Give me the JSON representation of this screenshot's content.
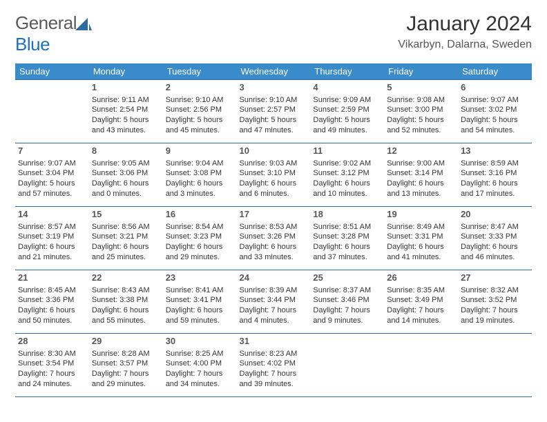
{
  "logo": {
    "general": "General",
    "blue": "Blue",
    "sail_color": "#2d6ca2"
  },
  "header": {
    "month_title": "January 2024",
    "location": "Vikarbyn, Dalarna, Sweden"
  },
  "colors": {
    "header_bg": "#3a8bca",
    "header_text": "#ffffff",
    "cell_border": "#2d6ca2",
    "body_text": "#333333",
    "daynum_text": "#555555",
    "logo_gray": "#5a5a5a",
    "logo_blue": "#2170b8",
    "page_bg": "#ffffff"
  },
  "calendar": {
    "weekdays": [
      "Sunday",
      "Monday",
      "Tuesday",
      "Wednesday",
      "Thursday",
      "Friday",
      "Saturday"
    ],
    "weeks": [
      [
        null,
        {
          "n": "1",
          "sr": "Sunrise: 9:11 AM",
          "ss": "Sunset: 2:54 PM",
          "dl": "Daylight: 5 hours and 43 minutes."
        },
        {
          "n": "2",
          "sr": "Sunrise: 9:10 AM",
          "ss": "Sunset: 2:56 PM",
          "dl": "Daylight: 5 hours and 45 minutes."
        },
        {
          "n": "3",
          "sr": "Sunrise: 9:10 AM",
          "ss": "Sunset: 2:57 PM",
          "dl": "Daylight: 5 hours and 47 minutes."
        },
        {
          "n": "4",
          "sr": "Sunrise: 9:09 AM",
          "ss": "Sunset: 2:59 PM",
          "dl": "Daylight: 5 hours and 49 minutes."
        },
        {
          "n": "5",
          "sr": "Sunrise: 9:08 AM",
          "ss": "Sunset: 3:00 PM",
          "dl": "Daylight: 5 hours and 52 minutes."
        },
        {
          "n": "6",
          "sr": "Sunrise: 9:07 AM",
          "ss": "Sunset: 3:02 PM",
          "dl": "Daylight: 5 hours and 54 minutes."
        }
      ],
      [
        {
          "n": "7",
          "sr": "Sunrise: 9:07 AM",
          "ss": "Sunset: 3:04 PM",
          "dl": "Daylight: 5 hours and 57 minutes."
        },
        {
          "n": "8",
          "sr": "Sunrise: 9:05 AM",
          "ss": "Sunset: 3:06 PM",
          "dl": "Daylight: 6 hours and 0 minutes."
        },
        {
          "n": "9",
          "sr": "Sunrise: 9:04 AM",
          "ss": "Sunset: 3:08 PM",
          "dl": "Daylight: 6 hours and 3 minutes."
        },
        {
          "n": "10",
          "sr": "Sunrise: 9:03 AM",
          "ss": "Sunset: 3:10 PM",
          "dl": "Daylight: 6 hours and 6 minutes."
        },
        {
          "n": "11",
          "sr": "Sunrise: 9:02 AM",
          "ss": "Sunset: 3:12 PM",
          "dl": "Daylight: 6 hours and 10 minutes."
        },
        {
          "n": "12",
          "sr": "Sunrise: 9:00 AM",
          "ss": "Sunset: 3:14 PM",
          "dl": "Daylight: 6 hours and 13 minutes."
        },
        {
          "n": "13",
          "sr": "Sunrise: 8:59 AM",
          "ss": "Sunset: 3:16 PM",
          "dl": "Daylight: 6 hours and 17 minutes."
        }
      ],
      [
        {
          "n": "14",
          "sr": "Sunrise: 8:57 AM",
          "ss": "Sunset: 3:19 PM",
          "dl": "Daylight: 6 hours and 21 minutes."
        },
        {
          "n": "15",
          "sr": "Sunrise: 8:56 AM",
          "ss": "Sunset: 3:21 PM",
          "dl": "Daylight: 6 hours and 25 minutes."
        },
        {
          "n": "16",
          "sr": "Sunrise: 8:54 AM",
          "ss": "Sunset: 3:23 PM",
          "dl": "Daylight: 6 hours and 29 minutes."
        },
        {
          "n": "17",
          "sr": "Sunrise: 8:53 AM",
          "ss": "Sunset: 3:26 PM",
          "dl": "Daylight: 6 hours and 33 minutes."
        },
        {
          "n": "18",
          "sr": "Sunrise: 8:51 AM",
          "ss": "Sunset: 3:28 PM",
          "dl": "Daylight: 6 hours and 37 minutes."
        },
        {
          "n": "19",
          "sr": "Sunrise: 8:49 AM",
          "ss": "Sunset: 3:31 PM",
          "dl": "Daylight: 6 hours and 41 minutes."
        },
        {
          "n": "20",
          "sr": "Sunrise: 8:47 AM",
          "ss": "Sunset: 3:33 PM",
          "dl": "Daylight: 6 hours and 46 minutes."
        }
      ],
      [
        {
          "n": "21",
          "sr": "Sunrise: 8:45 AM",
          "ss": "Sunset: 3:36 PM",
          "dl": "Daylight: 6 hours and 50 minutes."
        },
        {
          "n": "22",
          "sr": "Sunrise: 8:43 AM",
          "ss": "Sunset: 3:38 PM",
          "dl": "Daylight: 6 hours and 55 minutes."
        },
        {
          "n": "23",
          "sr": "Sunrise: 8:41 AM",
          "ss": "Sunset: 3:41 PM",
          "dl": "Daylight: 6 hours and 59 minutes."
        },
        {
          "n": "24",
          "sr": "Sunrise: 8:39 AM",
          "ss": "Sunset: 3:44 PM",
          "dl": "Daylight: 7 hours and 4 minutes."
        },
        {
          "n": "25",
          "sr": "Sunrise: 8:37 AM",
          "ss": "Sunset: 3:46 PM",
          "dl": "Daylight: 7 hours and 9 minutes."
        },
        {
          "n": "26",
          "sr": "Sunrise: 8:35 AM",
          "ss": "Sunset: 3:49 PM",
          "dl": "Daylight: 7 hours and 14 minutes."
        },
        {
          "n": "27",
          "sr": "Sunrise: 8:32 AM",
          "ss": "Sunset: 3:52 PM",
          "dl": "Daylight: 7 hours and 19 minutes."
        }
      ],
      [
        {
          "n": "28",
          "sr": "Sunrise: 8:30 AM",
          "ss": "Sunset: 3:54 PM",
          "dl": "Daylight: 7 hours and 24 minutes."
        },
        {
          "n": "29",
          "sr": "Sunrise: 8:28 AM",
          "ss": "Sunset: 3:57 PM",
          "dl": "Daylight: 7 hours and 29 minutes."
        },
        {
          "n": "30",
          "sr": "Sunrise: 8:25 AM",
          "ss": "Sunset: 4:00 PM",
          "dl": "Daylight: 7 hours and 34 minutes."
        },
        {
          "n": "31",
          "sr": "Sunrise: 8:23 AM",
          "ss": "Sunset: 4:02 PM",
          "dl": "Daylight: 7 hours and 39 minutes."
        },
        null,
        null,
        null
      ]
    ]
  }
}
